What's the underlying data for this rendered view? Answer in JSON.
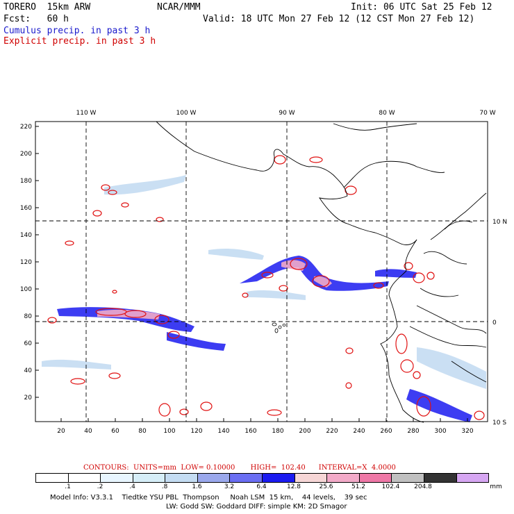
{
  "header": {
    "model": "TORERO  15km ARW",
    "org": "NCAR/MMM",
    "init": "Init: 06 UTC Sat 25 Feb 12",
    "fcst": "Fcst:   60 h",
    "valid": "Valid: 18 UTC Mon 27 Feb 12 (12 CST Mon 27 Feb 12)",
    "legend_cumulus": "Cumulus precip. in past 3 h",
    "legend_explicit": "Explicit precip. in past 3 h"
  },
  "axes": {
    "lon_labels": [
      "110 W",
      "100 W",
      "90 W",
      "80 W",
      "70 W"
    ],
    "lat_labels": [
      "10 N",
      "0",
      "10 S"
    ],
    "y_ticks": [
      "220",
      "200",
      "180",
      "160",
      "140",
      "120",
      "100",
      "80",
      "60",
      "40",
      "20"
    ],
    "x_ticks": [
      "20",
      "40",
      "60",
      "80",
      "100",
      "120",
      "140",
      "160",
      "180",
      "200",
      "220",
      "240",
      "260",
      "280",
      "300",
      "320"
    ]
  },
  "contours": {
    "text": "CONTOURS:  UNITS=mm  LOW= 0.10000       HIGH=  102.40      INTERVAL=X  4.0000"
  },
  "colorbar": {
    "colors": [
      "#ffffff",
      "#ffffff",
      "#e8f6ff",
      "#d6eef8",
      "#c4dcf2",
      "#9aa8ec",
      "#6a6ef2",
      "#1b1bf0",
      "#f6d6d6",
      "#f2aac8",
      "#ee78a6",
      "#c0c0c0",
      "#333333",
      "#d6a6f2"
    ],
    "labels": [
      ".1",
      ".2",
      ".4",
      ".8",
      "1.6",
      "3.2",
      "6.4",
      "12.8",
      "25.6",
      "51.2",
      "102.4",
      "204.8"
    ],
    "units": "mm"
  },
  "footer": {
    "line1": "Model Info: V3.3.1    Tiedtke YSU PBL  Thompson     Noah LSM  15 km,    44 levels,    39 sec",
    "line2": "LW: Godd SW: Goddard DIFF: simple KM: 2D Smagor"
  }
}
